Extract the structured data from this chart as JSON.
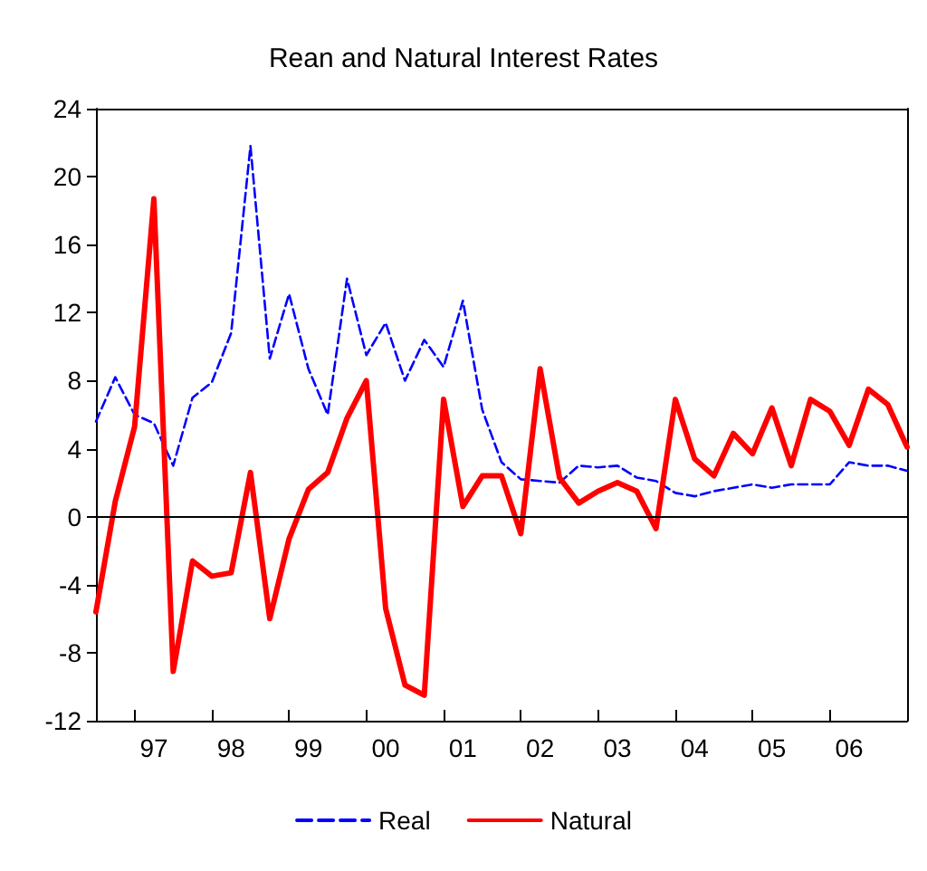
{
  "chart_data": {
    "type": "line",
    "title": "Rean and Natural Interest Rates",
    "categories": [
      null,
      null,
      null,
      "97",
      null,
      null,
      null,
      "98",
      null,
      null,
      null,
      "99",
      null,
      null,
      null,
      "00",
      null,
      null,
      null,
      "01",
      null,
      null,
      null,
      "02",
      null,
      null,
      null,
      "03",
      null,
      null,
      null,
      "04",
      null,
      null,
      null,
      "05",
      null,
      null,
      null,
      "06",
      null,
      null,
      null
    ],
    "series": [
      {
        "name": "Real",
        "color": "#0000ff",
        "line_style": "dashed",
        "values": [
          5.6,
          8.2,
          6.0,
          5.5,
          3.0,
          7.0,
          7.9,
          10.8,
          21.8,
          9.3,
          13.1,
          8.7,
          6.0,
          14.0,
          9.5,
          11.4,
          8.0,
          10.4,
          8.8,
          12.7,
          6.3,
          3.2,
          2.2,
          2.1,
          2.0,
          3.0,
          2.9,
          3.0,
          2.3,
          2.1,
          1.4,
          1.2,
          1.5,
          1.7,
          1.9,
          1.7,
          1.9,
          1.9,
          1.9,
          3.2,
          3.0,
          3.0,
          2.7
        ]
      },
      {
        "name": "Natural",
        "color": "#ff0000",
        "line_style": "solid",
        "values": [
          -5.6,
          0.9,
          5.3,
          18.7,
          -9.1,
          -2.6,
          -3.5,
          -3.3,
          2.6,
          -6.0,
          -1.3,
          1.6,
          2.6,
          5.8,
          8.0,
          -5.4,
          -9.9,
          -10.5,
          6.9,
          0.6,
          2.4,
          2.4,
          -1.0,
          8.7,
          2.3,
          0.8,
          1.5,
          2.0,
          1.5,
          -0.7,
          6.9,
          3.4,
          2.4,
          4.9,
          3.7,
          6.4,
          3.0,
          6.9,
          6.2,
          4.2,
          7.5,
          6.6,
          4.1
        ]
      }
    ],
    "ylim": [
      -12,
      24
    ],
    "yticks": [
      -12,
      -8,
      -4,
      0,
      4,
      8,
      12,
      16,
      20,
      24
    ],
    "ref_lines": [
      {
        "axis": "y",
        "value": 0,
        "color": "#000000"
      }
    ],
    "grid": false,
    "legend": "bottom",
    "marker": "none"
  }
}
